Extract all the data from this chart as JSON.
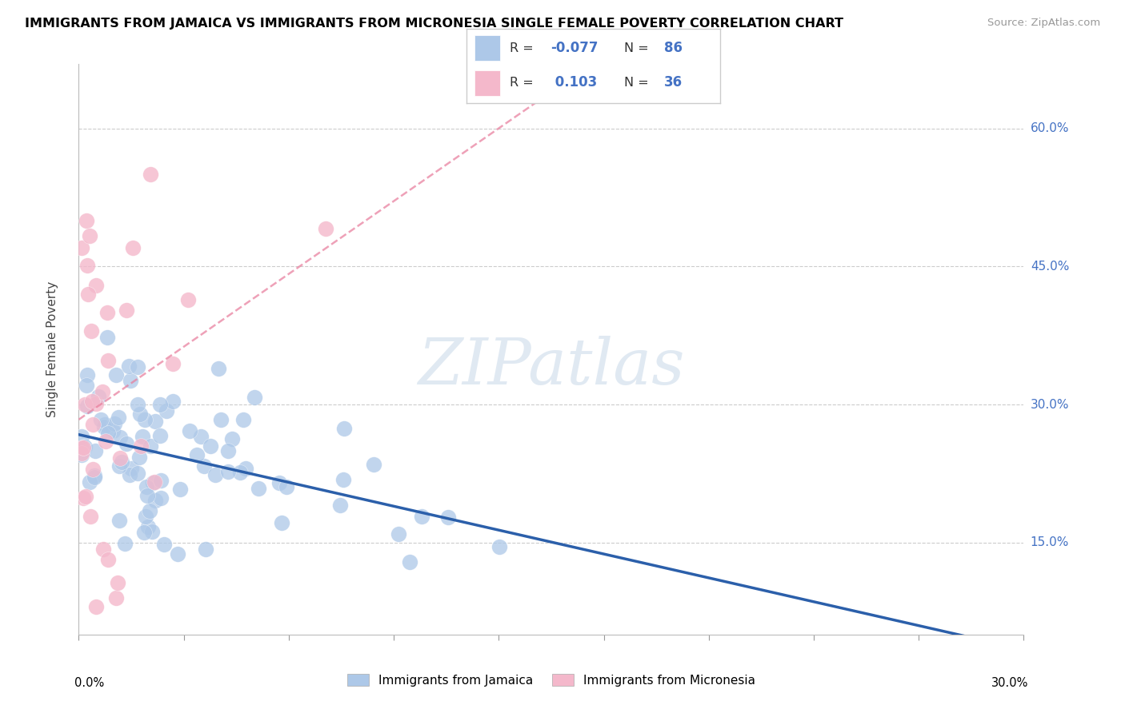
{
  "title": "IMMIGRANTS FROM JAMAICA VS IMMIGRANTS FROM MICRONESIA SINGLE FEMALE POVERTY CORRELATION CHART",
  "source": "Source: ZipAtlas.com",
  "ylabel": "Single Female Poverty",
  "yticks": [
    0.15,
    0.3,
    0.45,
    0.6
  ],
  "ytick_labels": [
    "15.0%",
    "30.0%",
    "45.0%",
    "60.0%"
  ],
  "xlim": [
    0.0,
    0.3
  ],
  "ylim": [
    0.05,
    0.67
  ],
  "jamaica_color": "#adc8e8",
  "micronesia_color": "#f4b8cb",
  "jamaica_line_color": "#2b5faa",
  "micronesia_line_color": "#e87a9a",
  "watermark": "ZIPatlas",
  "background_color": "#ffffff",
  "R_jamaica": -0.077,
  "N_jamaica": 86,
  "R_micronesia": 0.103,
  "N_micronesia": 36,
  "legend_jamaica_color": "#adc8e8",
  "legend_micronesia_color": "#f4b8cb",
  "bottom_legend_jamaica": "Immigrants from Jamaica",
  "bottom_legend_micronesia": "Immigrants from Micronesia"
}
